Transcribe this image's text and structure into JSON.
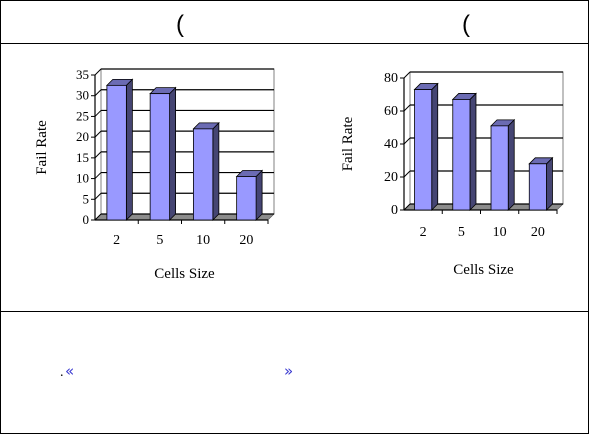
{
  "header": {
    "left_mark": "(",
    "right_mark": "("
  },
  "chart_data": [
    {
      "type": "bar",
      "categories": [
        "2",
        "5",
        "10",
        "20"
      ],
      "values": [
        32.5,
        30.5,
        22,
        10.5
      ],
      "xlabel": "Cells Size",
      "ylabel": "Fail Rate",
      "ylim": [
        0,
        35
      ],
      "yticks": [
        "0",
        "5",
        "10",
        "15",
        "20",
        "25",
        "30",
        "35"
      ],
      "grid": true,
      "style": "3d-column",
      "bar_color": "#9999ff"
    },
    {
      "type": "bar",
      "categories": [
        "2",
        "5",
        "10",
        "20"
      ],
      "values": [
        73,
        67,
        51,
        28
      ],
      "xlabel": "Cells Size",
      "ylabel": "Fail Rate",
      "ylim": [
        0,
        80
      ],
      "yticks": [
        "0",
        "20",
        "40",
        "60",
        "80"
      ],
      "grid": true,
      "style": "3d-column",
      "bar_color": "#9999ff"
    }
  ],
  "footer": {
    "dot": ".",
    "open_quote": "«",
    "close_quote": "»",
    "accent_color": "#3a3ad0"
  }
}
